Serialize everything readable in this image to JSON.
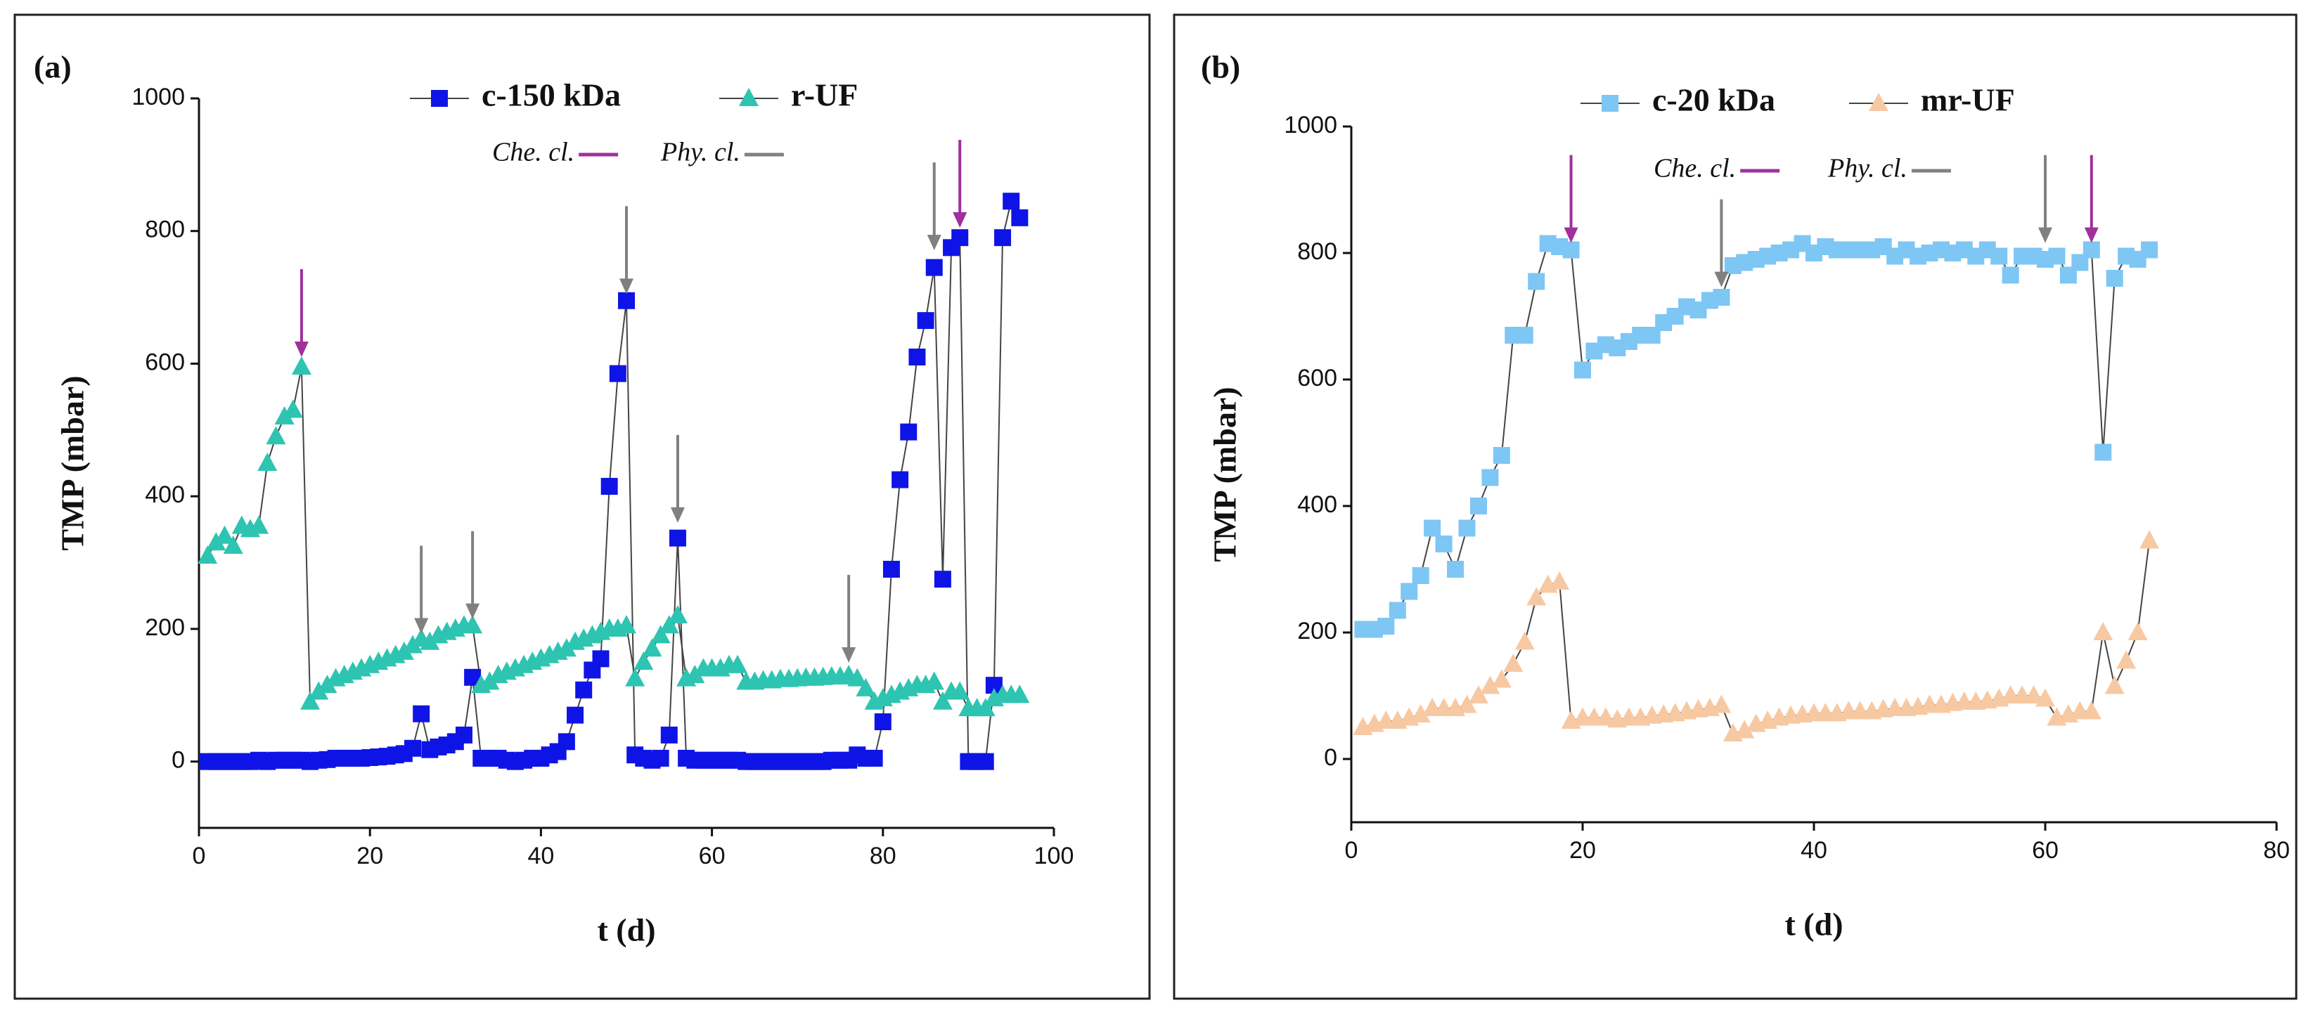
{
  "chart_data": [
    {
      "type": "line",
      "panel_label": "(a)",
      "xlabel": "t (d)",
      "ylabel": "TMP (mbar)",
      "xlim": [
        0,
        100
      ],
      "xticks": [
        0,
        20,
        40,
        60,
        80,
        100
      ],
      "ylim": [
        -100,
        1000
      ],
      "yticks": [
        0,
        200,
        400,
        600,
        800,
        1000
      ],
      "series": [
        {
          "name": "c-150 kDa",
          "color": "#0f14e6",
          "marker": "square",
          "x": [
            1,
            2,
            3,
            4,
            5,
            6,
            7,
            8,
            9,
            10,
            11,
            12,
            13,
            14,
            15,
            16,
            17,
            18,
            19,
            20,
            21,
            22,
            23,
            24,
            25,
            26,
            27,
            28,
            29,
            30,
            31,
            32,
            33,
            34,
            35,
            36,
            37,
            38,
            39,
            40,
            41,
            42,
            43,
            44,
            45,
            46,
            47,
            48,
            49,
            50,
            51,
            52,
            53,
            54,
            55,
            56,
            57,
            58,
            59,
            60,
            61,
            62,
            63,
            64,
            65,
            66,
            67,
            68,
            69,
            70,
            71,
            72,
            73,
            74,
            75,
            76,
            77,
            78,
            79,
            80,
            81,
            82,
            83,
            84,
            85,
            86,
            87,
            88,
            89,
            90,
            91,
            92,
            93,
            94,
            95,
            96
          ],
          "values": [
            0,
            0,
            0,
            0,
            0,
            0,
            2,
            0,
            2,
            2,
            2,
            2,
            0,
            2,
            3,
            5,
            5,
            5,
            5,
            6,
            7,
            8,
            10,
            12,
            20,
            72,
            18,
            22,
            25,
            30,
            40,
            127,
            5,
            5,
            5,
            2,
            0,
            2,
            5,
            5,
            10,
            15,
            30,
            70,
            108,
            138,
            155,
            415,
            585,
            695,
            10,
            5,
            2,
            5,
            40,
            337,
            5,
            2,
            2,
            2,
            2,
            2,
            2,
            0,
            0,
            0,
            0,
            0,
            0,
            0,
            0,
            0,
            0,
            2,
            2,
            2,
            10,
            5,
            5,
            60,
            290,
            425,
            497,
            610,
            665,
            745,
            275,
            775,
            790,
            0,
            0,
            0,
            115,
            790,
            845,
            820
          ]
        },
        {
          "name": "r-UF",
          "color": "#2ec4b2",
          "marker": "triangle",
          "x": [
            1,
            2,
            3,
            4,
            5,
            6,
            7,
            8,
            9,
            10,
            11,
            12,
            13,
            14,
            15,
            16,
            17,
            18,
            19,
            20,
            21,
            22,
            23,
            24,
            25,
            26,
            27,
            28,
            29,
            30,
            31,
            32,
            33,
            34,
            35,
            36,
            37,
            38,
            39,
            40,
            41,
            42,
            43,
            44,
            45,
            46,
            47,
            48,
            49,
            50,
            51,
            52,
            53,
            54,
            55,
            56,
            57,
            58,
            59,
            60,
            61,
            62,
            63,
            64,
            65,
            66,
            67,
            68,
            69,
            70,
            71,
            72,
            73,
            74,
            75,
            76,
            77,
            78,
            79,
            80,
            81,
            82,
            83,
            84,
            85,
            86,
            87,
            88,
            89,
            90,
            91,
            92,
            93,
            94,
            95,
            96
          ],
          "values": [
            310,
            330,
            340,
            325,
            355,
            350,
            355,
            450,
            490,
            520,
            530,
            595,
            90,
            105,
            115,
            125,
            130,
            135,
            140,
            145,
            150,
            155,
            160,
            165,
            175,
            185,
            180,
            190,
            195,
            200,
            205,
            205,
            115,
            120,
            130,
            135,
            140,
            145,
            150,
            155,
            160,
            165,
            170,
            180,
            185,
            190,
            195,
            200,
            200,
            205,
            125,
            150,
            170,
            190,
            205,
            220,
            125,
            130,
            140,
            140,
            140,
            145,
            145,
            120,
            120,
            122,
            122,
            124,
            124,
            125,
            126,
            126,
            127,
            128,
            128,
            130,
            125,
            110,
            90,
            95,
            100,
            105,
            110,
            115,
            115,
            120,
            90,
            105,
            105,
            80,
            80,
            80,
            95,
            100,
            100,
            100
          ]
        }
      ],
      "cleaning": [
        {
          "name": "Che. cl.",
          "color": "#a0309c",
          "x": [
            12,
            89
          ],
          "y": [
            610,
            805
          ]
        },
        {
          "name": "Phy. cl.",
          "color": "#808080",
          "x": [
            26,
            32,
            50,
            56,
            76,
            86
          ],
          "y": [
            193,
            215,
            705,
            360,
            149,
            771
          ]
        }
      ]
    },
    {
      "type": "line",
      "panel_label": "(b)",
      "xlabel": "t (d)",
      "ylabel": "TMP (mbar)",
      "xlim": [
        0,
        80
      ],
      "xticks": [
        0,
        20,
        40,
        60,
        80
      ],
      "ylim": [
        -100,
        1000
      ],
      "yticks": [
        0,
        200,
        400,
        600,
        800,
        1000
      ],
      "series": [
        {
          "name": "c-20 kDa",
          "color": "#7ec6f4",
          "marker": "square",
          "x": [
            1,
            2,
            3,
            4,
            5,
            6,
            7,
            8,
            9,
            10,
            11,
            12,
            13,
            14,
            15,
            16,
            17,
            18,
            19,
            20,
            21,
            22,
            23,
            24,
            25,
            26,
            27,
            28,
            29,
            30,
            31,
            32,
            33,
            34,
            35,
            36,
            37,
            38,
            39,
            40,
            41,
            42,
            43,
            44,
            45,
            46,
            47,
            48,
            49,
            50,
            51,
            52,
            53,
            54,
            55,
            56,
            57,
            58,
            59,
            60,
            61,
            62,
            63,
            64,
            65,
            66,
            67,
            68,
            69
          ],
          "values": [
            205,
            205,
            210,
            235,
            265,
            290,
            365,
            340,
            300,
            365,
            400,
            445,
            480,
            670,
            670,
            755,
            815,
            810,
            805,
            615,
            645,
            655,
            650,
            660,
            670,
            670,
            690,
            700,
            715,
            710,
            725,
            730,
            780,
            785,
            790,
            795,
            800,
            805,
            815,
            800,
            810,
            805,
            805,
            805,
            805,
            810,
            795,
            805,
            795,
            800,
            805,
            800,
            805,
            795,
            805,
            795,
            765,
            795,
            795,
            790,
            795,
            765,
            785,
            805,
            485,
            760,
            795,
            790,
            805
          ]
        },
        {
          "name": "mr-UF",
          "color": "#f7c9a3",
          "marker": "triangle",
          "x": [
            1,
            2,
            3,
            4,
            5,
            6,
            7,
            8,
            9,
            10,
            11,
            12,
            13,
            14,
            15,
            16,
            17,
            18,
            19,
            20,
            21,
            22,
            23,
            24,
            25,
            26,
            27,
            28,
            29,
            30,
            31,
            32,
            33,
            34,
            35,
            36,
            37,
            38,
            39,
            40,
            41,
            42,
            43,
            44,
            45,
            46,
            47,
            48,
            49,
            50,
            51,
            52,
            53,
            54,
            55,
            56,
            57,
            58,
            59,
            60,
            61,
            62,
            63,
            64,
            65,
            66,
            67,
            68,
            69
          ],
          "values": [
            50,
            55,
            60,
            60,
            65,
            70,
            80,
            80,
            80,
            85,
            100,
            115,
            125,
            150,
            185,
            255,
            275,
            280,
            60,
            65,
            65,
            65,
            62,
            65,
            65,
            68,
            70,
            72,
            75,
            78,
            80,
            85,
            40,
            45,
            55,
            60,
            65,
            68,
            70,
            72,
            72,
            72,
            75,
            75,
            75,
            78,
            80,
            80,
            82,
            85,
            85,
            88,
            90,
            90,
            92,
            95,
            100,
            100,
            100,
            95,
            65,
            70,
            75,
            75,
            200,
            115,
            155,
            200,
            345
          ]
        }
      ],
      "cleaning": [
        {
          "name": "Che. cl.",
          "color": "#a0309c",
          "x": [
            19,
            64
          ],
          "y": [
            816,
            816
          ]
        },
        {
          "name": "Phy. cl.",
          "color": "#808080",
          "x": [
            32,
            60
          ],
          "y": [
            746,
            816
          ]
        }
      ]
    }
  ]
}
